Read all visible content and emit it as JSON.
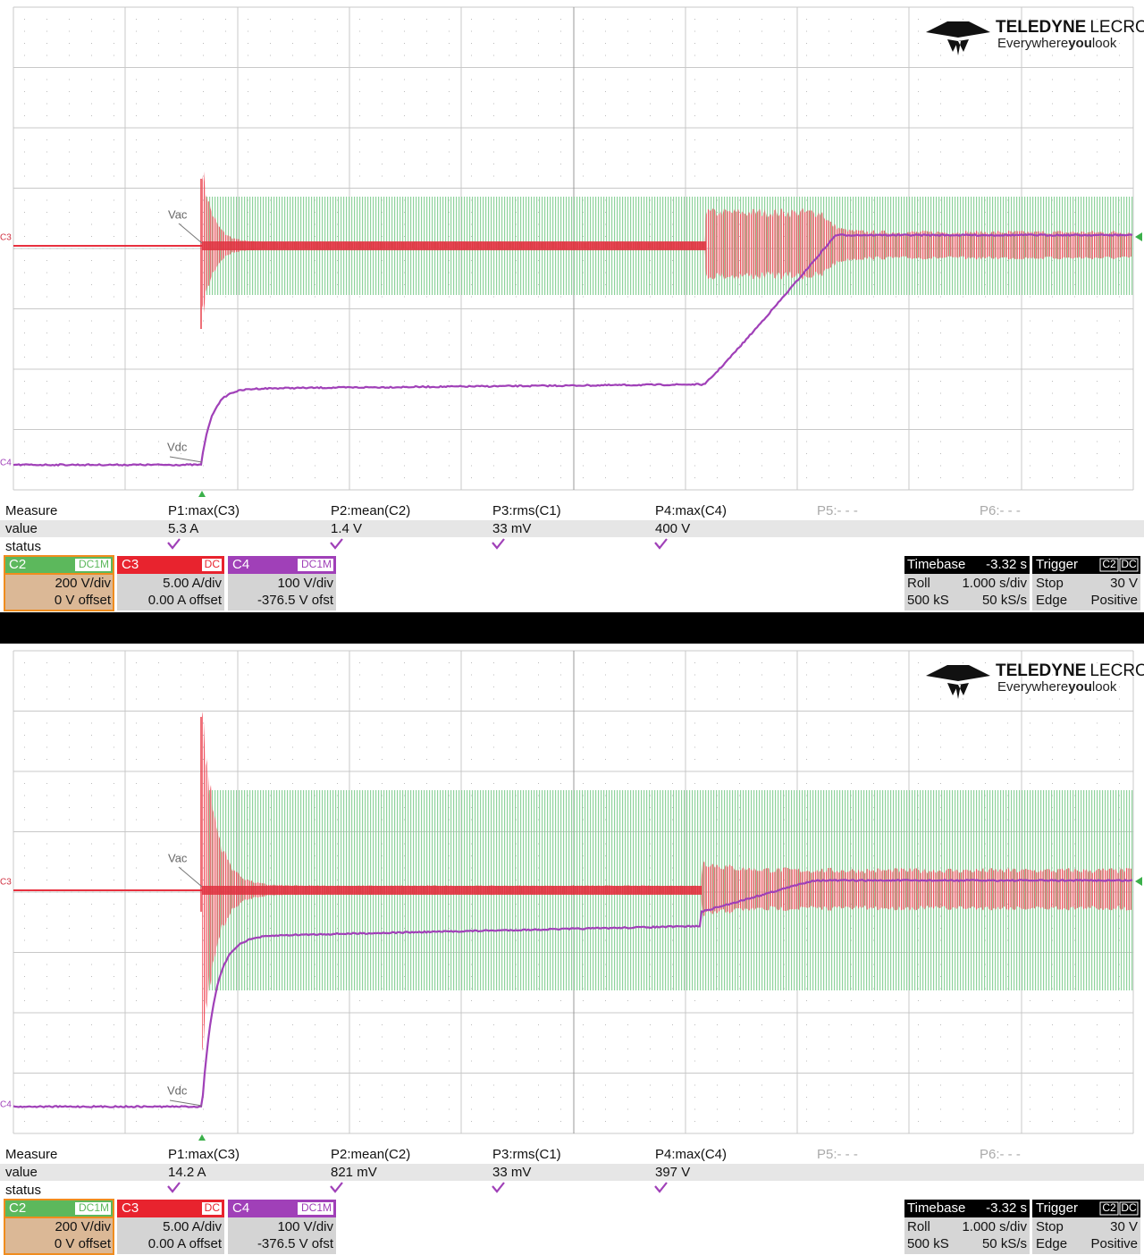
{
  "panels": [
    {
      "logo": {
        "brand_a": "TELEDYNE",
        "brand_b": "LECROY",
        "tagline_a": "Everywhere",
        "tagline_b": "you",
        "tagline_c": "look"
      },
      "traces": {
        "vac": "Vac",
        "vdc": "Vdc",
        "c3": "C3",
        "c4": "C4"
      },
      "measure": {
        "header": [
          "Measure",
          "P1:max(C3)",
          "P2:mean(C2)",
          "P3:rms(C1)",
          "P4:max(C4)",
          "P5:- - -",
          "P6:- - -"
        ],
        "value": [
          "value",
          "5.3 A",
          "1.4 V",
          "33 mV",
          "400 V"
        ],
        "status": "status"
      },
      "channels": [
        {
          "name": "C2",
          "coupling": "DC1M",
          "scale": "200 V/div",
          "offset": "0 V offset"
        },
        {
          "name": "C3",
          "coupling": "DC",
          "scale": "5.00 A/div",
          "offset": "0.00 A offset"
        },
        {
          "name": "C4",
          "coupling": "DC1M",
          "scale": "100 V/div",
          "offset": "-376.5 V ofst"
        }
      ],
      "timebase": {
        "label": "Timebase",
        "delay": "-3.32 s",
        "mode": "Roll",
        "scale": "1.000 s/div",
        "samples": "500 kS",
        "rate": "50 kS/s"
      },
      "trigger": {
        "label": "Trigger",
        "source": "C2",
        "coupling": "DC",
        "state": "Stop",
        "level": "30 V",
        "type": "Edge",
        "slope": "Positive"
      }
    },
    {
      "logo": {
        "brand_a": "TELEDYNE",
        "brand_b": "LECROY",
        "tagline_a": "Everywhere",
        "tagline_b": "you",
        "tagline_c": "look"
      },
      "traces": {
        "vac": "Vac",
        "vdc": "Vdc",
        "c3": "C3",
        "c4": "C4"
      },
      "measure": {
        "header": [
          "Measure",
          "P1:max(C3)",
          "P2:mean(C2)",
          "P3:rms(C1)",
          "P4:max(C4)",
          "P5:- - -",
          "P6:- - -"
        ],
        "value": [
          "value",
          "14.2 A",
          "821 mV",
          "33 mV",
          "397 V"
        ],
        "status": "status"
      },
      "channels": [
        {
          "name": "C2",
          "coupling": "DC1M",
          "scale": "200 V/div",
          "offset": "0 V offset"
        },
        {
          "name": "C3",
          "coupling": "DC",
          "scale": "5.00 A/div",
          "offset": "0.00 A offset"
        },
        {
          "name": "C4",
          "coupling": "DC1M",
          "scale": "100 V/div",
          "offset": "-376.5 V ofst"
        }
      ],
      "timebase": {
        "label": "Timebase",
        "delay": "-3.32 s",
        "mode": "Roll",
        "scale": "1.000 s/div",
        "samples": "500 kS",
        "rate": "50 kS/s"
      },
      "trigger": {
        "label": "Trigger",
        "source": "C2",
        "coupling": "DC",
        "state": "Stop",
        "level": "30 V",
        "type": "Edge",
        "slope": "Positive"
      }
    }
  ]
}
